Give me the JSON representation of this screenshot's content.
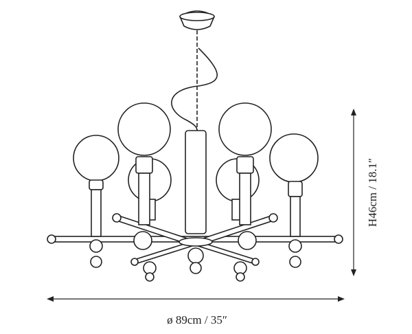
{
  "dimensions": {
    "height": "H46cm / 18.1″",
    "width": "ø 89cm / 35″"
  }
}
